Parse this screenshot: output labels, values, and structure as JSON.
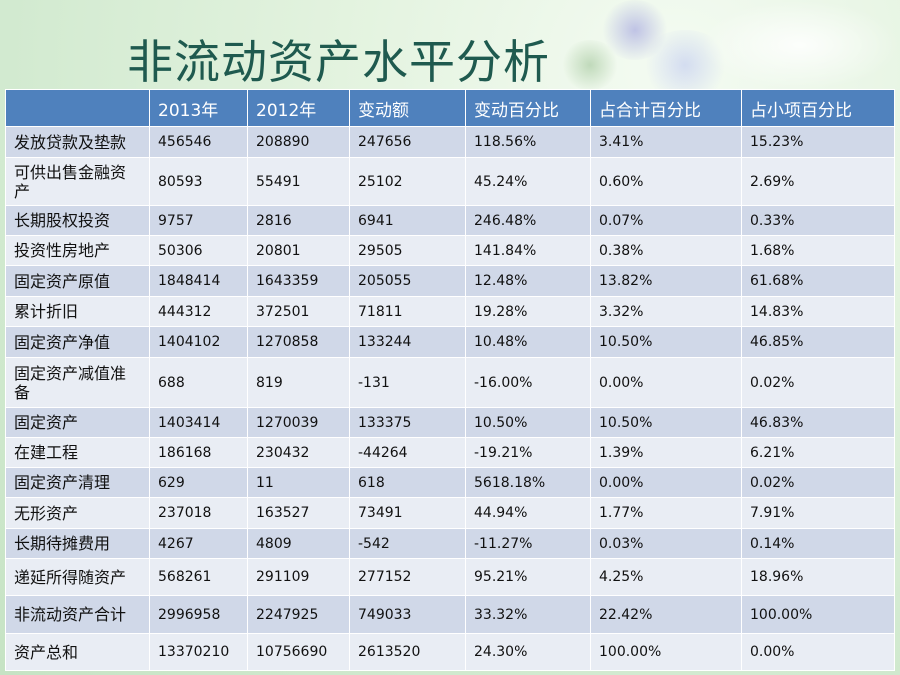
{
  "title": "非流动资产水平分析",
  "table": {
    "headers": [
      "",
      "2013年",
      "2012年",
      "变动额",
      "变动百分比",
      "占合计百分比",
      "占小项百分比"
    ],
    "rows": [
      [
        "发放贷款及垫款",
        "456546",
        "208890",
        "247656",
        "118.56%",
        "3.41%",
        "15.23%"
      ],
      [
        "可供出售金融资产",
        "80593",
        "55491",
        "25102",
        "45.24%",
        "0.60%",
        "2.69%"
      ],
      [
        "长期股权投资",
        "9757",
        "2816",
        "6941",
        "246.48%",
        "0.07%",
        "0.33%"
      ],
      [
        "投资性房地产",
        "50306",
        "20801",
        "29505",
        "141.84%",
        "0.38%",
        "1.68%"
      ],
      [
        "固定资产原值",
        "1848414",
        "1643359",
        "205055",
        "12.48%",
        "13.82%",
        "61.68%"
      ],
      [
        "累计折旧",
        "444312",
        "372501",
        "71811",
        "19.28%",
        "3.32%",
        "14.83%"
      ],
      [
        "固定资产净值",
        "1404102",
        "1270858",
        "133244",
        "10.48%",
        "10.50%",
        "46.85%"
      ],
      [
        "固定资产减值准备",
        "688",
        "819",
        "-131",
        "-16.00%",
        "0.00%",
        "0.02%"
      ],
      [
        "固定资产",
        "1403414",
        "1270039",
        "133375",
        "10.50%",
        "10.50%",
        "46.83%"
      ],
      [
        "在建工程",
        "186168",
        "230432",
        "-44264",
        "-19.21%",
        "1.39%",
        "6.21%"
      ],
      [
        "固定资产清理",
        "629",
        "11",
        "618",
        "5618.18%",
        "0.00%",
        "0.02%"
      ],
      [
        "无形资产",
        "237018",
        "163527",
        "73491",
        "44.94%",
        "1.77%",
        "7.91%"
      ],
      [
        "长期待摊费用",
        "4267",
        "4809",
        "-542",
        "-11.27%",
        "0.03%",
        "0.14%"
      ],
      [
        "递延所得随资产",
        "568261",
        "291109",
        "277152",
        "95.21%",
        "4.25%",
        "18.96%"
      ],
      [
        "非流动资产合计",
        "2996958",
        "2247925",
        "749033",
        "33.32%",
        "22.42%",
        "100.00%"
      ],
      [
        "资产总和",
        "13370210",
        "10756690",
        "2613520",
        "24.30%",
        "100.00%",
        "0.00%"
      ]
    ]
  },
  "colors": {
    "header_bg": "#4f81bd",
    "row_odd": "#d0d8e8",
    "row_even": "#e9edf4",
    "title": "#1f5a4f"
  }
}
